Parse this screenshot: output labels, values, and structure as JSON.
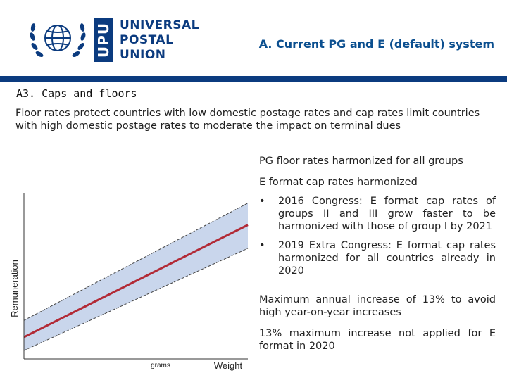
{
  "header": {
    "org_logo_text": [
      "UNIVERSAL",
      "POSTAL",
      "UNION"
    ],
    "org_abbrev": "UPU",
    "title": "A. Current PG and E (default) system"
  },
  "section": {
    "title": "A3. Caps and floors",
    "intro": "Floor rates protect countries with low domestic postage rates and cap rates limit countries with high domestic postage rates to moderate the impact on terminal dues"
  },
  "right_column": {
    "p1": "PG floor rates harmonized for all groups",
    "p2": "E format cap rates harmonized",
    "bullets": [
      "2016 Congress: E format cap rates of groups II and III grow faster to be harmonized with those of group I by 2021",
      "2019 Extra Congress: E format cap rates harmonized for all countries already in 2020"
    ],
    "bullet_symbol": "•",
    "p3": "Maximum annual increase of 13% to avoid high year-on-year increases",
    "p4": "13% maximum increase not applied for E format in 2020"
  },
  "chart_data": {
    "type": "area",
    "ylabel": "Remuneration",
    "xlabel": "Weight",
    "x_tick_label": "grams",
    "series": [
      {
        "role": "floor",
        "x": [
          0,
          1
        ],
        "y": [
          0.05,
          0.66
        ]
      },
      {
        "role": "rate",
        "x": [
          0,
          1
        ],
        "y": [
          0.13,
          0.8
        ]
      },
      {
        "role": "cap",
        "x": [
          0,
          1
        ],
        "y": [
          0.23,
          0.93
        ]
      }
    ],
    "colors": {
      "band": "#c9d6ec",
      "rate_line": "#b22a36",
      "boundary": "#444444",
      "axis": "#333333"
    }
  }
}
